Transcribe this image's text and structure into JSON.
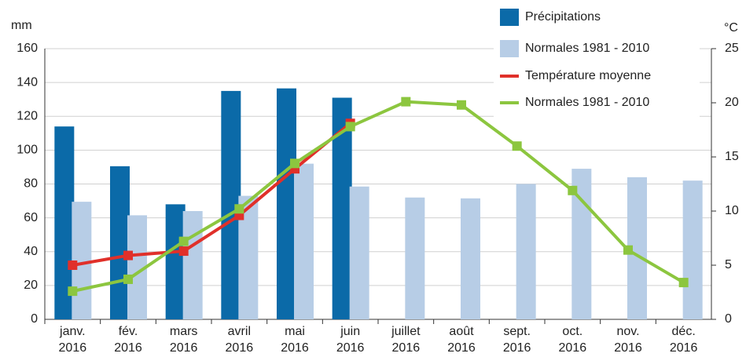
{
  "chart_data": {
    "type": "bar",
    "y_unit": "mm",
    "y2_unit": "°C",
    "categories": [
      "janv. 2016",
      "fév. 2016",
      "mars 2016",
      "avril 2016",
      "mai 2016",
      "juin 2016",
      "juillet 2016",
      "août 2016",
      "sept. 2016",
      "oct. 2016",
      "nov. 2016",
      "déc. 2016"
    ],
    "series": [
      {
        "name": "Précipitations",
        "type": "bar",
        "color": "#0b6aa8",
        "values": [
          114,
          90.5,
          68,
          135,
          136.5,
          131,
          null,
          null,
          null,
          null,
          null,
          null
        ]
      },
      {
        "name": "Normales 1981 - 2010",
        "type": "bar",
        "color": "#b7cde6",
        "values": [
          69.5,
          61.5,
          64,
          73,
          92,
          78.5,
          72,
          71.5,
          80,
          89,
          84,
          82
        ]
      },
      {
        "name": "Température moyenne",
        "type": "line",
        "axis": "y2",
        "color": "#e0302a",
        "values": [
          5.0,
          5.9,
          6.3,
          9.6,
          13.9,
          18.1,
          null,
          null,
          null,
          null,
          null,
          null
        ]
      },
      {
        "name": "Normales 1981 - 2010",
        "type": "line",
        "axis": "y2",
        "color": "#8cc63f",
        "values": [
          2.6,
          3.7,
          7.2,
          10.2,
          14.4,
          17.8,
          20.1,
          19.8,
          16.0,
          11.9,
          6.4,
          3.4
        ]
      }
    ],
    "ylim": [
      0,
      160
    ],
    "yticks": [
      0,
      20,
      40,
      60,
      80,
      100,
      120,
      140,
      160
    ],
    "y2lim": [
      0,
      25
    ],
    "y2ticks": [
      0,
      5,
      10,
      15,
      20,
      25
    ],
    "grid": true,
    "legend": "top-right"
  }
}
